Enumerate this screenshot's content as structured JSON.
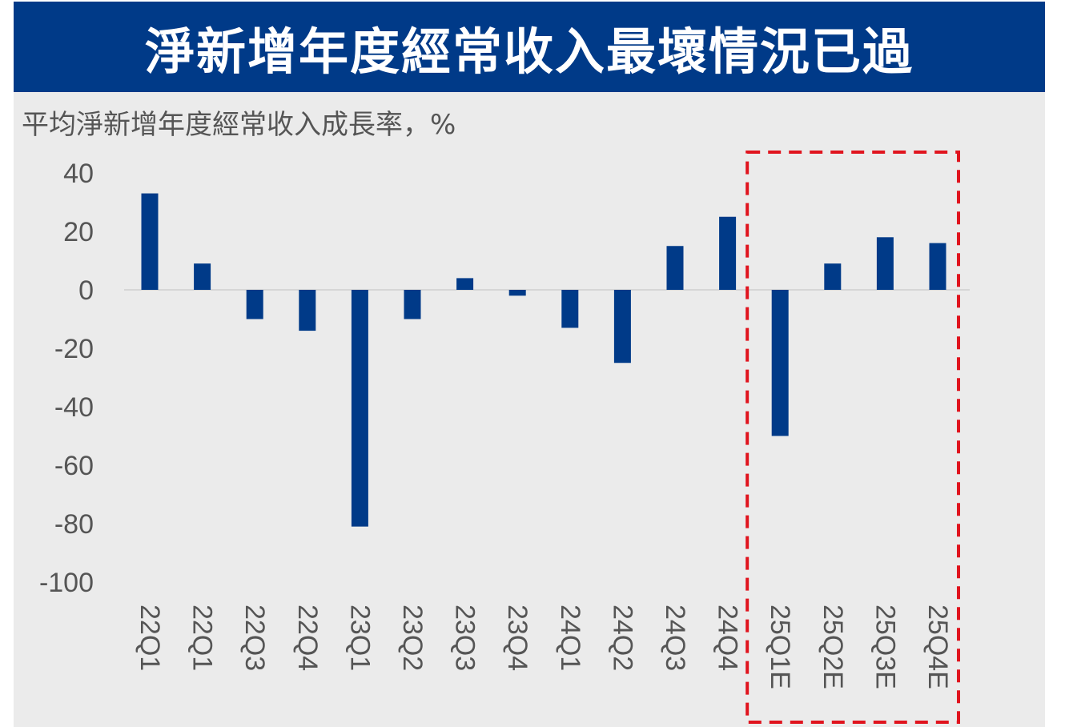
{
  "banner": {
    "title": "淨新增年度經常收入最壞情況已過",
    "background_color": "#003a88"
  },
  "chart_data": {
    "type": "bar",
    "title": "淨新增年度經常收入最壞情況已過",
    "subtitle": "平均淨新增年度經常收入成長率，%",
    "xlabel": "",
    "ylabel": "",
    "categories": [
      "22Q1",
      "22Q1",
      "22Q3",
      "22Q4",
      "23Q1",
      "23Q2",
      "23Q3",
      "23Q4",
      "24Q1",
      "24Q2",
      "24Q3",
      "24Q4",
      "25Q1E",
      "25Q2E",
      "25Q3E",
      "25Q4E"
    ],
    "values": [
      33,
      9,
      -10,
      -14,
      -81,
      -10,
      4,
      -2,
      -13,
      -25,
      15,
      25,
      -50,
      9,
      18,
      16
    ],
    "ylim": [
      -100,
      40
    ],
    "yticks": [
      "40",
      "20",
      "0",
      "-20",
      "-40",
      "-60",
      "-80",
      "-100"
    ],
    "yticks_values": [
      40,
      20,
      0,
      -20,
      -40,
      -60,
      -80,
      -100
    ],
    "bar_color": "#003a88",
    "grid": false,
    "legend": "none",
    "highlight": {
      "categories": [
        "25Q1E",
        "25Q2E",
        "25Q3E",
        "25Q4E"
      ],
      "style": "dashed-box",
      "color": "#e0141e"
    }
  }
}
